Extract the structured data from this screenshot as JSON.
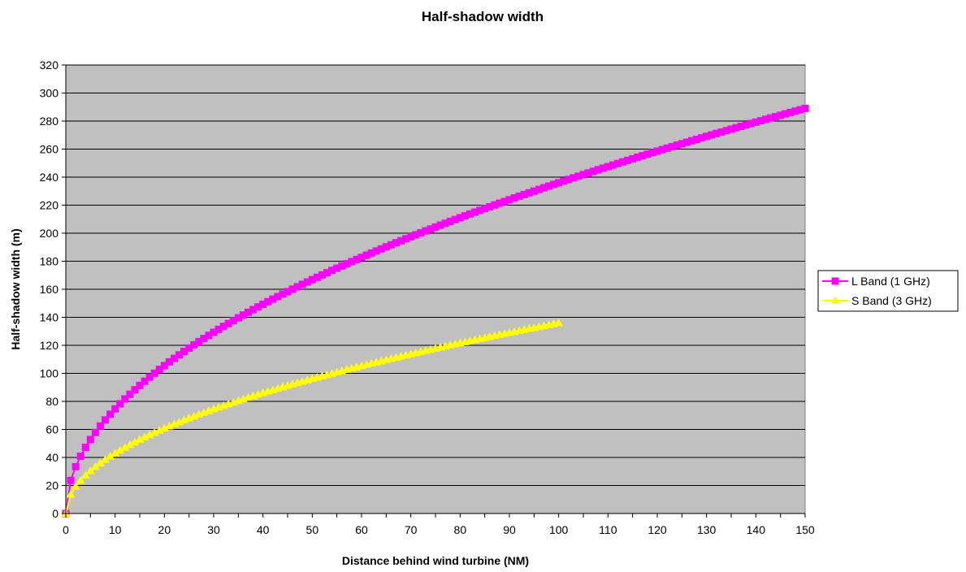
{
  "chart_data": {
    "type": "line",
    "title": "Half-shadow width",
    "xlabel": "Distance behind wind turbine (NM)",
    "ylabel": "Half-shadow width (m)",
    "xlim": [
      0,
      150
    ],
    "ylim": [
      0,
      320
    ],
    "x_ticks": [
      0,
      10,
      20,
      30,
      40,
      50,
      60,
      70,
      80,
      90,
      100,
      110,
      120,
      130,
      140,
      150
    ],
    "y_ticks": [
      0,
      20,
      40,
      60,
      80,
      100,
      120,
      140,
      160,
      180,
      200,
      220,
      240,
      260,
      280,
      300,
      320
    ],
    "grid": "horizontal",
    "legend_position": "right",
    "plot_background": "#c0c0c0",
    "series": [
      {
        "name": "L Band (1 GHz)",
        "color": "#ff00ff",
        "marker": "square",
        "x_start": 0,
        "x_end": 150,
        "x_step": 1,
        "model": "236 * sqrt(x / 100)",
        "sample_points": [
          [
            0,
            0
          ],
          [
            1,
            23.6
          ],
          [
            2,
            33.4
          ],
          [
            4,
            47.2
          ],
          [
            10,
            74.6
          ],
          [
            20,
            105.5
          ],
          [
            40,
            149.3
          ],
          [
            60,
            182.8
          ],
          [
            80,
            211.1
          ],
          [
            100,
            236
          ],
          [
            120,
            258.5
          ],
          [
            150,
            289
          ]
        ]
      },
      {
        "name": "S Band (3 GHz)",
        "color": "#ffff00",
        "marker": "triangle",
        "x_start": 0,
        "x_end": 100,
        "x_step": 1,
        "model": "136 * sqrt(x / 100)",
        "sample_points": [
          [
            0,
            0
          ],
          [
            1,
            13.6
          ],
          [
            2,
            19.2
          ],
          [
            4,
            27.2
          ],
          [
            10,
            43
          ],
          [
            20,
            60.8
          ],
          [
            40,
            86
          ],
          [
            60,
            105.3
          ],
          [
            80,
            121.6
          ],
          [
            100,
            136
          ]
        ]
      }
    ]
  }
}
